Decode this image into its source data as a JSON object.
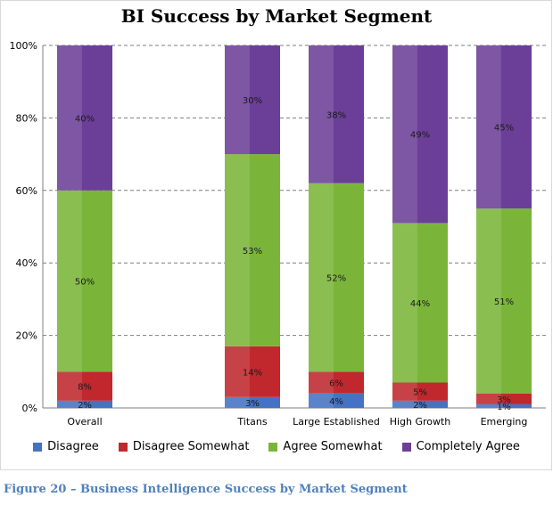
{
  "chart_data": {
    "type": "bar",
    "stacked": true,
    "title": "BI Success by Market Segment",
    "categories": [
      "Overall",
      "",
      "Titans",
      "Large Established",
      "High Growth",
      "Emerging"
    ],
    "series": [
      {
        "name": "Disagree",
        "color": "#4472c4",
        "values": [
          2,
          null,
          3,
          4,
          2,
          1
        ],
        "labels": [
          "2%",
          "",
          "3%",
          "4%",
          "2%",
          "1%"
        ]
      },
      {
        "name": "Disagree Somewhat",
        "color": "#c0282d",
        "values": [
          8,
          null,
          14,
          6,
          5,
          3
        ],
        "labels": [
          "8%",
          "",
          "14%",
          "6%",
          "5%",
          "3%"
        ]
      },
      {
        "name": "Agree Somewhat",
        "color": "#7ab53a",
        "values": [
          50,
          null,
          53,
          52,
          44,
          51
        ],
        "labels": [
          "50%",
          "",
          "53%",
          "52%",
          "44%",
          "51%"
        ]
      },
      {
        "name": "Completely Agree",
        "color": "#6b3f98",
        "values": [
          40,
          null,
          30,
          38,
          49,
          45
        ],
        "labels": [
          "40%",
          "",
          "30%",
          "38%",
          "49%",
          "45%"
        ]
      }
    ],
    "ylim": [
      0,
      100
    ],
    "yticks": [
      "0%",
      "20%",
      "40%",
      "60%",
      "80%",
      "100%"
    ],
    "grid": true,
    "legend_position": "bottom"
  },
  "caption": "Figure 20 – Business Intelligence Success by Market Segment"
}
